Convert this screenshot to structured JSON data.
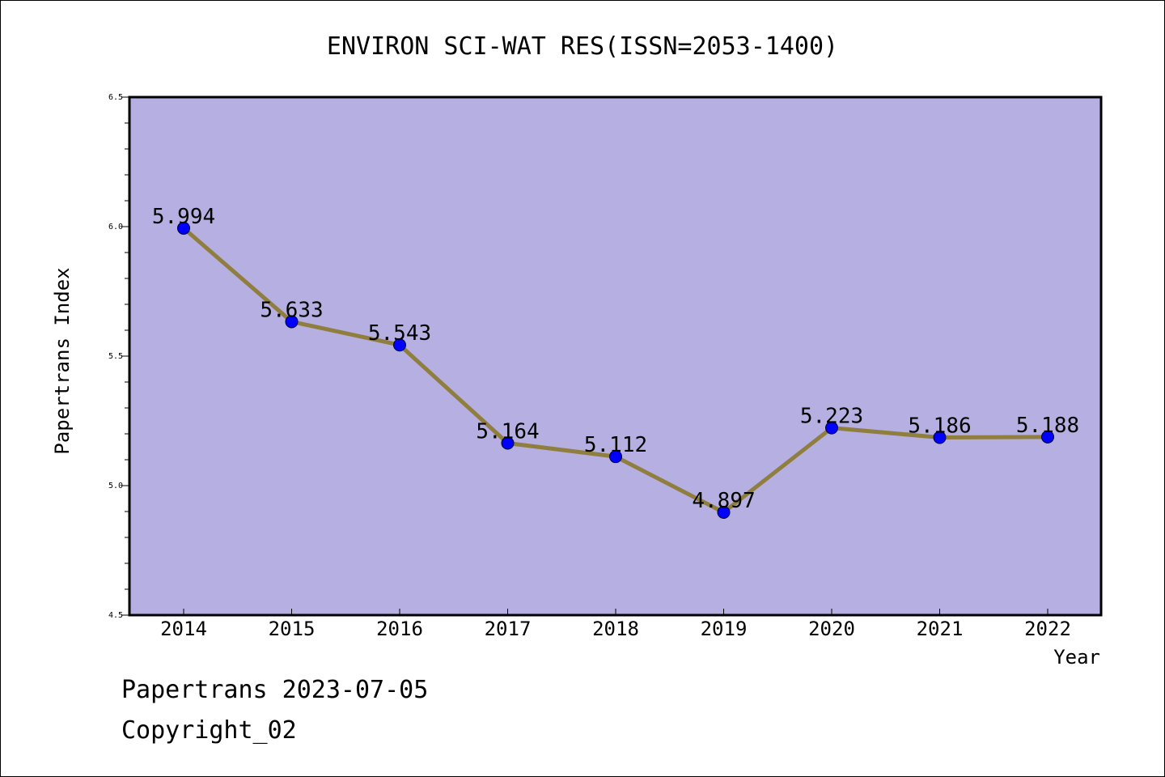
{
  "chart_data": {
    "type": "line",
    "title": "ENVIRON SCI-WAT RES(ISSN=2053-1400)",
    "xlabel": "Year",
    "ylabel": "Papertrans Index",
    "categories": [
      "2014",
      "2015",
      "2016",
      "2017",
      "2018",
      "2019",
      "2020",
      "2021",
      "2022"
    ],
    "values": [
      5.994,
      5.633,
      5.543,
      5.164,
      5.112,
      4.897,
      5.223,
      5.186,
      5.188
    ],
    "value_labels": [
      "5.994",
      "5.633",
      "5.543",
      "5.164",
      "5.112",
      "4.897",
      "5.223",
      "5.186",
      "5.188"
    ],
    "ylim": [
      4.5,
      6.5
    ],
    "yticks": [
      "4.5",
      "5.0",
      "5.5",
      "6.0",
      "6.5"
    ],
    "grid": false,
    "colors": {
      "plot_background": "#b5afe2",
      "line": "#8f7e3e",
      "marker": "#0000ff"
    }
  },
  "footer": {
    "line1": "Papertrans 2023-07-05",
    "line2": "Copyright_02"
  }
}
